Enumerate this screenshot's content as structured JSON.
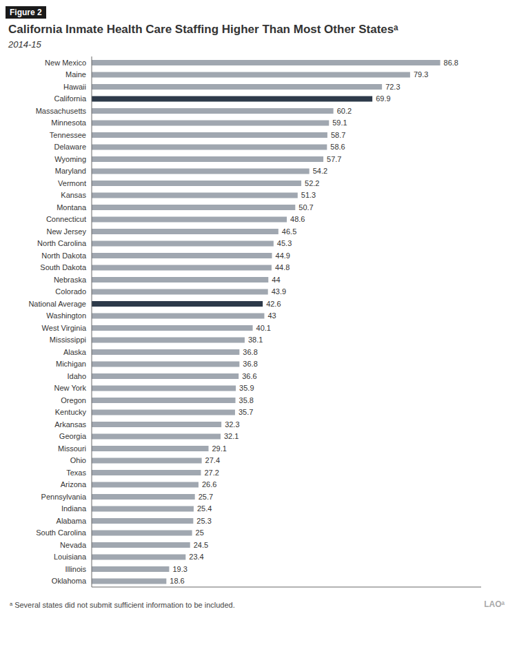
{
  "chart_data": {
    "type": "bar",
    "orientation": "horizontal",
    "title": "California Inmate Health Care Staffing Higher Than Most Other Statesᵃ",
    "subtitle": "2014-15",
    "annotations": [
      "Figure 2",
      "ᵃ Several states did not submit sufficient information to be included.",
      "LAOᵃ"
    ],
    "categories": [
      "New Mexico",
      "Maine",
      "Hawaii",
      "California",
      "Massachusetts",
      "Minnesota",
      "Tennessee",
      "Delaware",
      "Wyoming",
      "Maryland",
      "Vermont",
      "Kansas",
      "Montana",
      "Connecticut",
      "New Jersey",
      "North Carolina",
      "North Dakota",
      "South Dakota",
      "Nebraska",
      "Colorado",
      "National Average",
      "Washington",
      "West Virginia",
      "Mississippi",
      "Alaska",
      "Michigan",
      "Idaho",
      "New York",
      "Oregon",
      "Kentucky",
      "Arkansas",
      "Georgia",
      "Missouri",
      "Ohio",
      "Texas",
      "Arizona",
      "Pennsylvania",
      "Indiana",
      "Alabama",
      "South Carolina",
      "Nevada",
      "Louisiana",
      "Illinois",
      "Oklahoma"
    ],
    "values": [
      86.8,
      79.3,
      72.3,
      69.9,
      60.2,
      59.1,
      58.7,
      58.6,
      57.7,
      54.2,
      52.2,
      51.3,
      50.7,
      48.6,
      46.5,
      45.3,
      44.9,
      44.8,
      44.0,
      43.9,
      42.6,
      43.0,
      40.1,
      38.1,
      36.8,
      36.8,
      36.6,
      35.9,
      35.8,
      35.7,
      32.3,
      32.1,
      29.1,
      27.4,
      27.2,
      26.6,
      25.7,
      25.4,
      25.3,
      25.0,
      24.5,
      23.4,
      19.3,
      18.6
    ],
    "colors": [
      "#a0a7b0",
      "#a0a7b0",
      "#a0a7b0",
      "#2d3a4a",
      "#a0a7b0",
      "#a0a7b0",
      "#a0a7b0",
      "#a0a7b0",
      "#a0a7b0",
      "#a0a7b0",
      "#a0a7b0",
      "#a0a7b0",
      "#a0a7b0",
      "#a0a7b0",
      "#a0a7b0",
      "#a0a7b0",
      "#a0a7b0",
      "#a0a7b0",
      "#a0a7b0",
      "#a0a7b0",
      "#2d3a4a",
      "#a0a7b0",
      "#a0a7b0",
      "#a0a7b0",
      "#a0a7b0",
      "#a0a7b0",
      "#a0a7b0",
      "#a0a7b0",
      "#a0a7b0",
      "#a0a7b0",
      "#a0a7b0",
      "#a0a7b0",
      "#a0a7b0",
      "#a0a7b0",
      "#a0a7b0",
      "#a0a7b0",
      "#a0a7b0",
      "#a0a7b0",
      "#a0a7b0",
      "#a0a7b0",
      "#a0a7b0",
      "#a0a7b0",
      "#a0a7b0",
      "#a0a7b0"
    ],
    "xlim": [
      0,
      97
    ],
    "grid": false,
    "data_labels": true,
    "tick_labels": "y"
  }
}
